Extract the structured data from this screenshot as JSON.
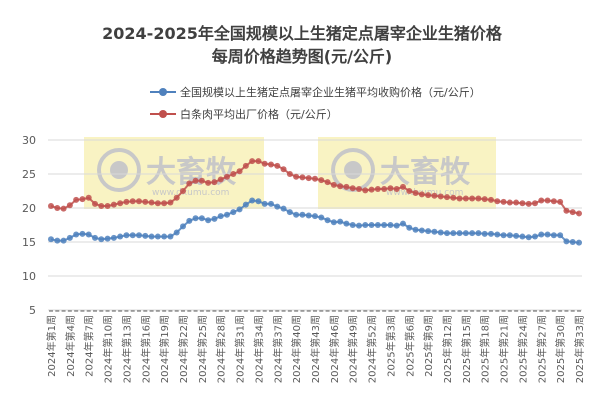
{
  "chart_data": {
    "type": "line",
    "title": "2024-2025年全国规模以上生猪定点屠宰企业生猪价格",
    "subtitle": "每周价格趋势图(元/公斤)",
    "xlabel": "",
    "ylabel": "",
    "ylim": [
      5,
      30
    ],
    "yticks": [
      5,
      10,
      15,
      20,
      25,
      30
    ],
    "grid": true,
    "legend_position": "top",
    "watermark": "大畜牧 www.dxumu.com",
    "x_tick_labels": [
      "2024年第1周",
      "2024年第4周",
      "2024年第7周",
      "2024年第10周",
      "2024年第13周",
      "2024年第16周",
      "2024年第19周",
      "2024年第22周",
      "2024年第25周",
      "2024年第28周",
      "2024年第31周",
      "2024年第34周",
      "2024年第37周",
      "2024年第40周",
      "2024年第43周",
      "2024年第46周",
      "2024年第49周",
      "2024年第52周",
      "2025年第3周",
      "2025年第6周",
      "2025年第9周",
      "2025年第12周",
      "2025年第15周",
      "2025年第18周",
      "2025年第21周",
      "2025年第24周",
      "2025年第27周",
      "2025年第30周",
      "2025年第33周"
    ],
    "series": [
      {
        "name": "全国规模以上生猪定点屠宰企业生猪平均收购价格（元/公斤）",
        "color": "#4f81bd",
        "values": [
          15.4,
          15.2,
          15.2,
          15.6,
          16.1,
          16.2,
          16.1,
          15.6,
          15.4,
          15.5,
          15.6,
          15.8,
          16.0,
          16.0,
          16.0,
          15.9,
          15.8,
          15.8,
          15.8,
          15.8,
          16.4,
          17.3,
          18.1,
          18.5,
          18.5,
          18.2,
          18.4,
          18.8,
          19.0,
          19.4,
          19.8,
          20.5,
          21.1,
          21.0,
          20.6,
          20.6,
          20.2,
          19.9,
          19.4,
          19.0,
          19.0,
          18.9,
          18.8,
          18.6,
          18.2,
          17.9,
          18.0,
          17.7,
          17.5,
          17.4,
          17.5,
          17.5,
          17.5,
          17.5,
          17.5,
          17.4,
          17.7,
          17.1,
          16.8,
          16.7,
          16.6,
          16.5,
          16.4,
          16.3,
          16.3,
          16.3,
          16.3,
          16.3,
          16.3,
          16.2,
          16.2,
          16.1,
          16.0,
          16.0,
          15.9,
          15.8,
          15.7,
          15.8,
          16.1,
          16.1,
          16.0,
          16.0,
          15.1,
          15.0,
          14.9
        ]
      },
      {
        "name": "白条肉平均出厂价格（元/公斤）",
        "color": "#c0504d",
        "values": [
          20.3,
          20.0,
          19.9,
          20.4,
          21.2,
          21.3,
          21.5,
          20.6,
          20.3,
          20.3,
          20.5,
          20.7,
          20.9,
          21.0,
          21.0,
          20.9,
          20.8,
          20.7,
          20.7,
          20.8,
          21.5,
          22.5,
          23.6,
          24.0,
          24.0,
          23.7,
          23.8,
          24.2,
          24.6,
          25.0,
          25.4,
          26.2,
          26.9,
          26.9,
          26.5,
          26.4,
          26.2,
          25.7,
          25.0,
          24.6,
          24.5,
          24.4,
          24.3,
          24.1,
          23.8,
          23.4,
          23.2,
          23.1,
          22.9,
          22.8,
          22.6,
          22.7,
          22.8,
          22.8,
          22.9,
          22.8,
          23.1,
          22.5,
          22.2,
          22.0,
          21.9,
          21.8,
          21.7,
          21.6,
          21.5,
          21.4,
          21.4,
          21.4,
          21.4,
          21.3,
          21.2,
          21.0,
          20.9,
          20.8,
          20.8,
          20.7,
          20.6,
          20.7,
          21.1,
          21.1,
          21.0,
          20.9,
          19.6,
          19.4,
          19.2
        ]
      }
    ]
  }
}
